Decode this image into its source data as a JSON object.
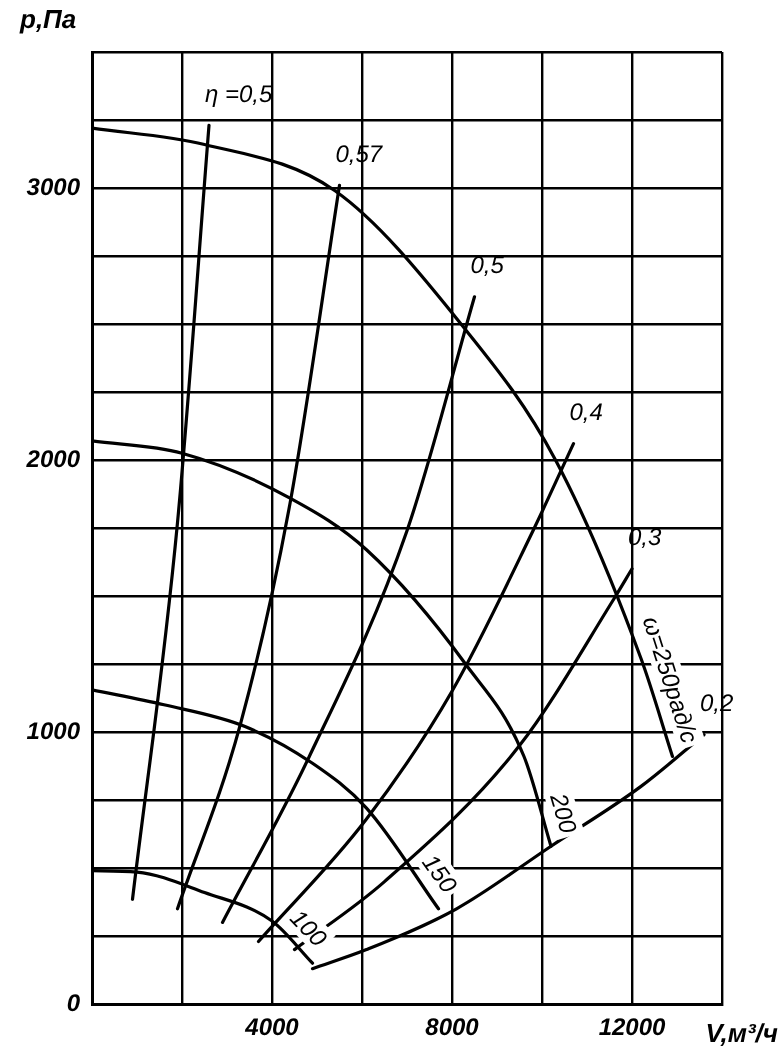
{
  "chart_data": {
    "type": "line",
    "xlabel": "V,м³/ч",
    "ylabel": "p,Па",
    "xlim": [
      0,
      14000
    ],
    "ylim": [
      0,
      3500
    ],
    "xticks": [
      {
        "value": 0,
        "label": null
      },
      {
        "value": 2000,
        "label": null
      },
      4000,
      {
        "value": 6000,
        "label": null
      },
      8000,
      {
        "value": 10000,
        "label": null
      },
      12000,
      {
        "value": 14000,
        "label": null
      }
    ],
    "yticks": [
      0,
      {
        "value": 250,
        "label": null
      },
      {
        "value": 500,
        "label": null
      },
      {
        "value": 750,
        "label": null
      },
      1000,
      {
        "value": 1250,
        "label": null
      },
      {
        "value": 1500,
        "label": null
      },
      {
        "value": 1750,
        "label": null
      },
      2000,
      {
        "value": 2250,
        "label": null
      },
      {
        "value": 2500,
        "label": null
      },
      {
        "value": 2750,
        "label": null
      },
      3000,
      {
        "value": 3250,
        "label": null
      },
      {
        "value": 3500,
        "label": null
      }
    ],
    "grid": true,
    "legend": false,
    "marker": "none",
    "line_style": "solid",
    "series": [
      {
        "name": "ω=250рад/с",
        "color": "#000000",
        "x": [
          0,
          2500,
          5400,
          8200,
          10300,
          12200,
          12900
        ],
        "values": [
          3220,
          3160,
          2990,
          2500,
          2000,
          1270,
          910
        ]
      },
      {
        "name": "200",
        "color": "#000000",
        "x": [
          0,
          2000,
          4400,
          6100,
          8300,
          9600,
          10200
        ],
        "values": [
          2070,
          2025,
          1860,
          1670,
          1250,
          910,
          580
        ]
      },
      {
        "name": "150",
        "color": "#000000",
        "x": [
          0,
          1600,
          3400,
          4900,
          6100,
          7700
        ],
        "values": [
          1155,
          1100,
          1020,
          885,
          720,
          350
        ]
      },
      {
        "name": "100",
        "color": "#000000",
        "x": [
          0,
          1000,
          2500,
          4000,
          4900
        ],
        "values": [
          490,
          485,
          410,
          305,
          150
        ]
      },
      {
        "name": "η =0,5",
        "color": "#000000",
        "x": [
          900,
          1900,
          2600
        ],
        "values": [
          385,
          1770,
          3230
        ]
      },
      {
        "name": "0,57",
        "color": "#000000",
        "x": [
          1900,
          3300,
          4400,
          5500
        ],
        "values": [
          350,
          1030,
          1840,
          3010
        ]
      },
      {
        "name": "0,5",
        "color": "#000000",
        "x": [
          2900,
          4800,
          7000,
          8500
        ],
        "values": [
          300,
          900,
          1740,
          2600
        ]
      },
      {
        "name": "0,4",
        "color": "#000000",
        "x": [
          3700,
          6100,
          8000,
          9800,
          10700
        ],
        "values": [
          230,
          680,
          1150,
          1740,
          2060
        ]
      },
      {
        "name": "0,3",
        "color": "#000000",
        "x": [
          4500,
          6500,
          9500,
          11600,
          12000
        ],
        "values": [
          200,
          450,
          950,
          1490,
          1600
        ]
      },
      {
        "name": "0,2",
        "color": "#000000",
        "x": [
          4900,
          6100,
          8100,
          10200,
          12200,
          13600
        ],
        "values": [
          130,
          200,
          350,
          580,
          800,
          990
        ]
      }
    ]
  }
}
